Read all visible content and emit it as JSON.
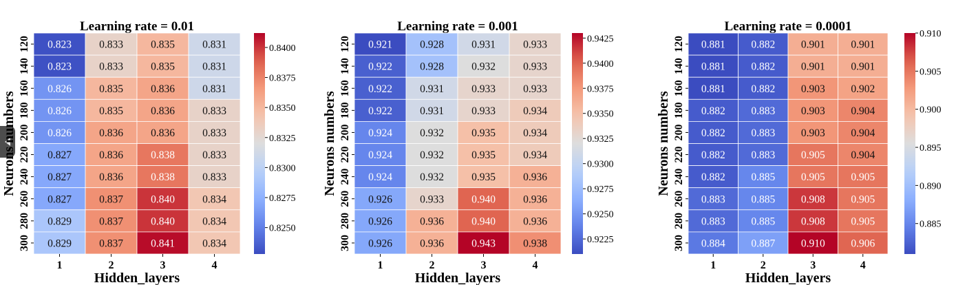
{
  "chart_data": [
    {
      "type": "heatmap",
      "title": "Learning rate = 0.01",
      "xlabel": "Hidden_layers",
      "ylabel": "Neurons numbers",
      "x": [
        "1",
        "2",
        "3",
        "4"
      ],
      "y": [
        "120",
        "140",
        "160",
        "180",
        "200",
        "220",
        "240",
        "260",
        "280",
        "300"
      ],
      "values": [
        [
          0.823,
          0.833,
          0.835,
          0.831
        ],
        [
          0.823,
          0.833,
          0.835,
          0.831
        ],
        [
          0.826,
          0.835,
          0.836,
          0.831
        ],
        [
          0.826,
          0.835,
          0.836,
          0.833
        ],
        [
          0.826,
          0.836,
          0.836,
          0.833
        ],
        [
          0.827,
          0.836,
          0.838,
          0.833
        ],
        [
          0.827,
          0.836,
          0.838,
          0.833
        ],
        [
          0.827,
          0.837,
          0.84,
          0.834
        ],
        [
          0.829,
          0.837,
          0.84,
          0.834
        ],
        [
          0.829,
          0.837,
          0.841,
          0.834
        ]
      ],
      "colorbar": {
        "vmin": 0.8228,
        "vmax": 0.8412,
        "ticks": [
          0.825,
          0.8275,
          0.83,
          0.8325,
          0.835,
          0.8375,
          0.84
        ],
        "tick_labels": [
          "0.8250",
          "0.8275",
          "0.8300",
          "0.8325",
          "0.8350",
          "0.8375",
          "0.8400"
        ]
      },
      "colormap": "coolwarm"
    },
    {
      "type": "heatmap",
      "title": "Learning rate = 0.001",
      "xlabel": "Hidden_layers",
      "ylabel": "Neurons numbers",
      "x": [
        "1",
        "2",
        "3",
        "4"
      ],
      "y": [
        "120",
        "140",
        "160",
        "180",
        "200",
        "220",
        "240",
        "260",
        "280",
        "300"
      ],
      "values": [
        [
          0.921,
          0.928,
          0.931,
          0.933
        ],
        [
          0.922,
          0.928,
          0.932,
          0.933
        ],
        [
          0.922,
          0.931,
          0.933,
          0.933
        ],
        [
          0.922,
          0.931,
          0.933,
          0.934
        ],
        [
          0.924,
          0.932,
          0.935,
          0.934
        ],
        [
          0.924,
          0.932,
          0.935,
          0.934
        ],
        [
          0.924,
          0.932,
          0.935,
          0.936
        ],
        [
          0.926,
          0.933,
          0.94,
          0.936
        ],
        [
          0.926,
          0.936,
          0.94,
          0.936
        ],
        [
          0.926,
          0.936,
          0.943,
          0.938
        ]
      ],
      "colorbar": {
        "vmin": 0.921,
        "vmax": 0.943,
        "ticks": [
          0.9225,
          0.925,
          0.9275,
          0.93,
          0.9325,
          0.935,
          0.9375,
          0.94,
          0.9425
        ],
        "tick_labels": [
          "0.9225",
          "0.9250",
          "0.9275",
          "0.9300",
          "0.9325",
          "0.9350",
          "0.9375",
          "0.9400",
          "0.9425"
        ]
      },
      "colormap": "coolwarm"
    },
    {
      "type": "heatmap",
      "title": "Learning rate = 0.0001",
      "xlabel": "Hidden_layers",
      "ylabel": "Neurons numbers",
      "x": [
        "1",
        "2",
        "3",
        "4"
      ],
      "y": [
        "120",
        "140",
        "160",
        "180",
        "200",
        "220",
        "240",
        "260",
        "280",
        "300"
      ],
      "values": [
        [
          0.881,
          0.882,
          0.901,
          0.901
        ],
        [
          0.881,
          0.882,
          0.901,
          0.901
        ],
        [
          0.881,
          0.882,
          0.903,
          0.902
        ],
        [
          0.882,
          0.883,
          0.903,
          0.904
        ],
        [
          0.882,
          0.883,
          0.903,
          0.904
        ],
        [
          0.882,
          0.883,
          0.905,
          0.904
        ],
        [
          0.882,
          0.885,
          0.905,
          0.905
        ],
        [
          0.883,
          0.885,
          0.908,
          0.905
        ],
        [
          0.883,
          0.885,
          0.908,
          0.905
        ],
        [
          0.884,
          0.887,
          0.91,
          0.906
        ]
      ],
      "colorbar": {
        "vmin": 0.881,
        "vmax": 0.91,
        "ticks": [
          0.885,
          0.89,
          0.895,
          0.9,
          0.905,
          0.91
        ],
        "tick_labels": [
          "0.885",
          "0.890",
          "0.895",
          "0.900",
          "0.905",
          "0.910"
        ]
      },
      "colormap": "coolwarm"
    }
  ],
  "sidebar_toggle": {
    "icon": "chevron-left-icon"
  }
}
